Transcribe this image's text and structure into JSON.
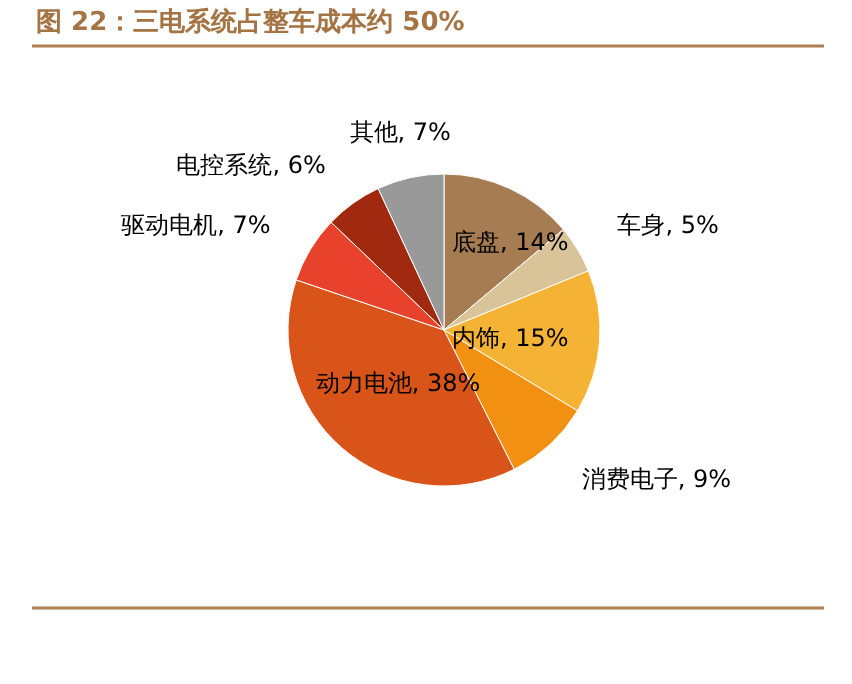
{
  "chart_data": {
    "type": "pie",
    "title": "图 22：三电系统占整车成本约 50%",
    "categories": [
      "底盘",
      "车身",
      "内饰",
      "消费电子",
      "动力电池",
      "驱动电机",
      "电控系统",
      "其他"
    ],
    "values": [
      14,
      5,
      15,
      9,
      38,
      7,
      6,
      7
    ],
    "value_labels": [
      "14%",
      "5%",
      "15%",
      "9%",
      "38%",
      "7%",
      "6%",
      "7%"
    ],
    "colors": [
      "#a67c52",
      "#d9c49a",
      "#f5b335",
      "#f29111",
      "#d95418",
      "#e8412c",
      "#a0290f",
      "#999999"
    ],
    "legend": false
  }
}
